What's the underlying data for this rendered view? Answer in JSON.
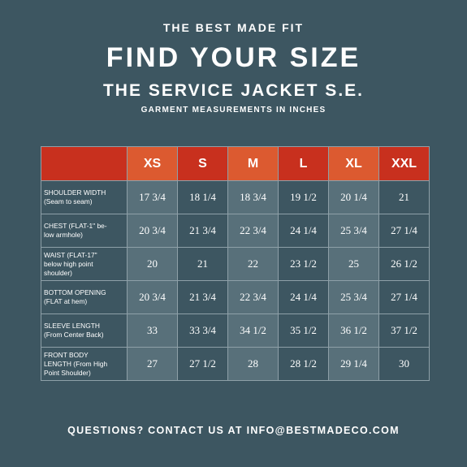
{
  "header": {
    "eyebrow": "THE BEST MADE FIT",
    "title": "FIND YOUR SIZE",
    "subtitle": "THE SERVICE JACKET S.E.",
    "caption": "GARMENT MEASUREMENTS IN INCHES"
  },
  "size_table": {
    "sizes": [
      "XS",
      "S",
      "M",
      "L",
      "XL",
      "XXL"
    ],
    "rows": [
      {
        "label": [
          "SHOULDER WIDTH",
          "(Seam to seam)"
        ],
        "values": [
          "17 3/4",
          "18 1/4",
          "18 3/4",
          "19 1/2",
          "20 1/4",
          "21"
        ]
      },
      {
        "label": [
          "CHEST (FLAT-1\" be-",
          "low armhole)"
        ],
        "values": [
          "20 3/4",
          "21 3/4",
          "22 3/4",
          "24 1/4",
          "25 3/4",
          "27 1/4"
        ]
      },
      {
        "label": [
          "WAIST (FLAT-17\"",
          "below high point",
          "shoulder)"
        ],
        "values": [
          "20",
          "21",
          "22",
          "23 1/2",
          "25",
          "26 1/2"
        ]
      },
      {
        "label": [
          "BOTTOM OPENING",
          "(FLAT at hem)"
        ],
        "values": [
          "20 3/4",
          "21 3/4",
          "22 3/4",
          "24 1/4",
          "25 3/4",
          "27 1/4"
        ]
      },
      {
        "label": [
          "SLEEVE LENGTH",
          "(From Center Back)"
        ],
        "values": [
          "33",
          "33 3/4",
          "34 1/2",
          "35 1/2",
          "36 1/2",
          "37 1/2"
        ]
      },
      {
        "label": [
          "FRONT BODY",
          "LENGTH (From High",
          "Point Shoulder)"
        ],
        "values": [
          "27",
          "27 1/2",
          "28",
          "28 1/2",
          "29 1/4",
          "30"
        ]
      }
    ]
  },
  "footer": {
    "contact": "QUESTIONS? CONTACT US AT INFO@BESTMADECO.COM"
  },
  "colors": {
    "background": "#3d5661",
    "header_red": "#c8301e",
    "header_orange": "#dc5a30",
    "cell_shade": "#58707a"
  }
}
